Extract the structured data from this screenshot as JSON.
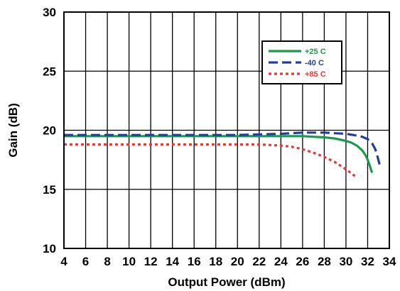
{
  "chart_data": {
    "type": "line",
    "title": "",
    "xlabel": "Output Power (dBm)",
    "ylabel": "Gain (dB)",
    "xlim": [
      4,
      34
    ],
    "ylim": [
      10,
      30
    ],
    "xticks": [
      4,
      6,
      8,
      10,
      12,
      14,
      16,
      18,
      20,
      22,
      24,
      26,
      28,
      30,
      32,
      34
    ],
    "yticks": [
      10,
      15,
      20,
      25,
      30
    ],
    "xtick_labels": [
      "4",
      "6",
      "8",
      "10",
      "12",
      "14",
      "16",
      "18",
      "20",
      "22",
      "24",
      "26",
      "28",
      "30",
      "32",
      "34"
    ],
    "ytick_labels": [
      "10",
      "15",
      "20",
      "25",
      "30"
    ],
    "grid": true,
    "legend_position": "top-right",
    "series": [
      {
        "name": "+25 C",
        "color": "#1b9a4b",
        "dash": "solid",
        "x": [
          4,
          8,
          12,
          16,
          20,
          24,
          26,
          27,
          28,
          29,
          30,
          30.5,
          31,
          31.5,
          31.8,
          32,
          32.2,
          32.4
        ],
        "y": [
          19.5,
          19.5,
          19.5,
          19.5,
          19.5,
          19.5,
          19.5,
          19.45,
          19.4,
          19.3,
          19.1,
          18.95,
          18.7,
          18.3,
          17.9,
          17.5,
          17.0,
          16.4
        ]
      },
      {
        "name": "-40 C",
        "color": "#1f3f99",
        "dash": "dashed",
        "x": [
          4,
          8,
          12,
          16,
          20,
          24,
          26,
          28,
          29,
          30,
          31,
          31.5,
          32,
          32.4,
          32.7,
          32.9,
          33.1
        ],
        "y": [
          19.6,
          19.6,
          19.6,
          19.6,
          19.6,
          19.7,
          19.8,
          19.8,
          19.75,
          19.7,
          19.55,
          19.45,
          19.25,
          18.9,
          18.4,
          17.8,
          17.1
        ]
      },
      {
        "name": "+85 C",
        "color": "#e53a3a",
        "dash": "dotted",
        "x": [
          4,
          8,
          12,
          16,
          20,
          22,
          23,
          24,
          25,
          26,
          27,
          28,
          29,
          30,
          30.5,
          31
        ],
        "y": [
          18.8,
          18.8,
          18.8,
          18.8,
          18.8,
          18.8,
          18.75,
          18.7,
          18.6,
          18.4,
          18.1,
          17.75,
          17.3,
          16.7,
          16.35,
          16.0
        ]
      }
    ]
  }
}
